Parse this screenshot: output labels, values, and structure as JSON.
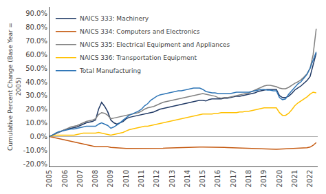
{
  "chart_data": {
    "type": "line",
    "ylabel": "Cumulative Percent Change (Base Year =\n2005)",
    "x": [
      2005.0,
      2005.2,
      2005.4,
      2005.6,
      2005.8,
      2006.0,
      2006.2,
      2006.4,
      2006.6,
      2006.8,
      2007.0,
      2007.2,
      2007.4,
      2007.6,
      2007.8,
      2008.0,
      2008.2,
      2008.4,
      2008.6,
      2008.8,
      2009.0,
      2009.2,
      2009.4,
      2009.6,
      2009.8,
      2010.0,
      2010.2,
      2010.4,
      2010.6,
      2010.8,
      2011.0,
      2011.2,
      2011.4,
      2011.6,
      2011.8,
      2012.0,
      2012.2,
      2012.4,
      2012.6,
      2012.8,
      2013.0,
      2013.2,
      2013.4,
      2013.6,
      2013.8,
      2014.0,
      2014.2,
      2014.4,
      2014.6,
      2014.8,
      2015.0,
      2015.2,
      2015.4,
      2015.6,
      2015.8,
      2016.0,
      2016.2,
      2016.4,
      2016.6,
      2016.8,
      2017.0,
      2017.2,
      2017.4,
      2017.6,
      2017.8,
      2018.0,
      2018.2,
      2018.4,
      2018.6,
      2018.8,
      2019.0,
      2019.2,
      2019.4,
      2019.6,
      2019.8,
      2020.0,
      2020.2,
      2020.4,
      2020.6,
      2020.8,
      2021.0,
      2021.2,
      2021.4,
      2021.6,
      2021.8,
      2022.0,
      2022.2,
      2022.4
    ],
    "series": [
      {
        "name": "NAICS 333: Machinery",
        "color": "#1f3864",
        "values": [
          0.0,
          0.01,
          0.02,
          0.03,
          0.04,
          0.05,
          0.055,
          0.06,
          0.065,
          0.07,
          0.08,
          0.09,
          0.1,
          0.105,
          0.11,
          0.12,
          0.2,
          0.25,
          0.22,
          0.18,
          0.12,
          0.1,
          0.09,
          0.1,
          0.11,
          0.13,
          0.14,
          0.145,
          0.15,
          0.155,
          0.16,
          0.165,
          0.17,
          0.175,
          0.18,
          0.19,
          0.2,
          0.205,
          0.21,
          0.215,
          0.22,
          0.225,
          0.23,
          0.235,
          0.24,
          0.245,
          0.25,
          0.255,
          0.26,
          0.265,
          0.265,
          0.26,
          0.27,
          0.275,
          0.275,
          0.275,
          0.275,
          0.28,
          0.28,
          0.285,
          0.29,
          0.295,
          0.295,
          0.3,
          0.305,
          0.31,
          0.315,
          0.32,
          0.33,
          0.335,
          0.34,
          0.345,
          0.345,
          0.345,
          0.345,
          0.3,
          0.285,
          0.285,
          0.295,
          0.315,
          0.34,
          0.355,
          0.37,
          0.39,
          0.41,
          0.44,
          0.52,
          0.61
        ]
      },
      {
        "name": "NAICS 334: Computers and Electronics",
        "color": "#c55a11",
        "values": [
          0.0,
          -0.005,
          -0.01,
          -0.015,
          -0.02,
          -0.025,
          -0.03,
          -0.035,
          -0.04,
          -0.045,
          -0.05,
          -0.055,
          -0.06,
          -0.065,
          -0.07,
          -0.075,
          -0.075,
          -0.075,
          -0.075,
          -0.075,
          -0.08,
          -0.082,
          -0.084,
          -0.086,
          -0.087,
          -0.087,
          -0.088,
          -0.088,
          -0.089,
          -0.089,
          -0.089,
          -0.089,
          -0.089,
          -0.089,
          -0.089,
          -0.088,
          -0.087,
          -0.086,
          -0.085,
          -0.084,
          -0.083,
          -0.082,
          -0.081,
          -0.08,
          -0.08,
          -0.079,
          -0.079,
          -0.078,
          -0.078,
          -0.077,
          -0.077,
          -0.077,
          -0.077,
          -0.077,
          -0.077,
          -0.078,
          -0.079,
          -0.08,
          -0.081,
          -0.082,
          -0.083,
          -0.083,
          -0.083,
          -0.083,
          -0.084,
          -0.085,
          -0.086,
          -0.087,
          -0.088,
          -0.09,
          -0.091,
          -0.092,
          -0.093,
          -0.094,
          -0.094,
          -0.093,
          -0.092,
          -0.091,
          -0.09,
          -0.089,
          -0.088,
          -0.087,
          -0.086,
          -0.085,
          -0.083,
          -0.078,
          -0.065,
          -0.045
        ]
      },
      {
        "name": "NAICS 335: Electrical Equipment and Appliances",
        "color": "#808080",
        "values": [
          0.0,
          0.01,
          0.02,
          0.03,
          0.04,
          0.05,
          0.06,
          0.07,
          0.075,
          0.08,
          0.09,
          0.1,
          0.11,
          0.115,
          0.12,
          0.13,
          0.16,
          0.175,
          0.17,
          0.155,
          0.13,
          0.135,
          0.14,
          0.145,
          0.15,
          0.155,
          0.16,
          0.165,
          0.17,
          0.175,
          0.185,
          0.2,
          0.21,
          0.215,
          0.22,
          0.23,
          0.24,
          0.25,
          0.255,
          0.26,
          0.265,
          0.27,
          0.275,
          0.28,
          0.285,
          0.29,
          0.295,
          0.3,
          0.305,
          0.31,
          0.315,
          0.31,
          0.305,
          0.3,
          0.295,
          0.285,
          0.28,
          0.285,
          0.285,
          0.29,
          0.295,
          0.3,
          0.305,
          0.31,
          0.315,
          0.32,
          0.33,
          0.34,
          0.35,
          0.36,
          0.37,
          0.375,
          0.375,
          0.37,
          0.365,
          0.355,
          0.35,
          0.35,
          0.36,
          0.375,
          0.39,
          0.4,
          0.415,
          0.435,
          0.46,
          0.5,
          0.6,
          0.79
        ]
      },
      {
        "name": "NAICS 336: Transportation Equipment",
        "color": "#ffc000",
        "values": [
          0.0,
          0.005,
          0.01,
          0.01,
          0.01,
          0.01,
          0.01,
          0.01,
          0.01,
          0.015,
          0.02,
          0.025,
          0.025,
          0.025,
          0.025,
          0.025,
          0.03,
          0.025,
          0.02,
          0.015,
          0.01,
          0.015,
          0.02,
          0.025,
          0.03,
          0.04,
          0.05,
          0.055,
          0.06,
          0.065,
          0.07,
          0.075,
          0.075,
          0.08,
          0.085,
          0.09,
          0.095,
          0.1,
          0.105,
          0.11,
          0.115,
          0.12,
          0.125,
          0.13,
          0.135,
          0.14,
          0.145,
          0.15,
          0.155,
          0.16,
          0.165,
          0.165,
          0.165,
          0.165,
          0.17,
          0.17,
          0.175,
          0.175,
          0.175,
          0.175,
          0.175,
          0.175,
          0.18,
          0.18,
          0.185,
          0.185,
          0.19,
          0.195,
          0.2,
          0.205,
          0.21,
          0.21,
          0.21,
          0.21,
          0.21,
          0.175,
          0.155,
          0.155,
          0.17,
          0.195,
          0.225,
          0.245,
          0.26,
          0.275,
          0.29,
          0.31,
          0.325,
          0.32
        ]
      },
      {
        "name": "Total Manufacturing",
        "color": "#2e75b6",
        "values": [
          0.0,
          0.01,
          0.025,
          0.035,
          0.04,
          0.045,
          0.05,
          0.055,
          0.055,
          0.06,
          0.065,
          0.07,
          0.075,
          0.075,
          0.075,
          0.075,
          0.09,
          0.1,
          0.09,
          0.08,
          0.06,
          0.07,
          0.085,
          0.1,
          0.12,
          0.14,
          0.155,
          0.165,
          0.175,
          0.185,
          0.2,
          0.225,
          0.24,
          0.265,
          0.28,
          0.295,
          0.305,
          0.31,
          0.315,
          0.32,
          0.325,
          0.33,
          0.335,
          0.335,
          0.34,
          0.345,
          0.35,
          0.355,
          0.355,
          0.355,
          0.345,
          0.33,
          0.325,
          0.32,
          0.32,
          0.315,
          0.315,
          0.315,
          0.315,
          0.315,
          0.32,
          0.325,
          0.325,
          0.325,
          0.325,
          0.325,
          0.33,
          0.335,
          0.34,
          0.345,
          0.345,
          0.34,
          0.34,
          0.335,
          0.335,
          0.285,
          0.27,
          0.275,
          0.31,
          0.335,
          0.365,
          0.385,
          0.4,
          0.425,
          0.455,
          0.5,
          0.565,
          0.62
        ]
      }
    ],
    "xlim": [
      2005,
      2022.5
    ],
    "ylim": [
      -0.22,
      0.95
    ],
    "xticks": [
      2005,
      2006,
      2007,
      2008,
      2009,
      2010,
      2011,
      2012,
      2013,
      2014,
      2015,
      2016,
      2017,
      2018,
      2019,
      2020,
      2021,
      2022
    ],
    "yticks": [
      {
        "value": -0.2,
        "label": "-20.0%"
      },
      {
        "value": -0.1,
        "label": "-10.0%"
      },
      {
        "value": 0.0,
        "label": "0.0%"
      },
      {
        "value": 0.1,
        "label": "10.0%"
      },
      {
        "value": 0.2,
        "label": "20.0%"
      },
      {
        "value": 0.3,
        "label": "30.0%"
      },
      {
        "value": 0.4,
        "label": "40.0%"
      },
      {
        "value": 0.5,
        "label": "50.0%"
      },
      {
        "value": 0.6,
        "label": "60.0%"
      },
      {
        "value": 0.7,
        "label": "70.0%"
      },
      {
        "value": 0.8,
        "label": "80.0%"
      },
      {
        "value": 0.9,
        "label": "90.0%"
      }
    ],
    "grid": false,
    "legend": "upper left"
  }
}
